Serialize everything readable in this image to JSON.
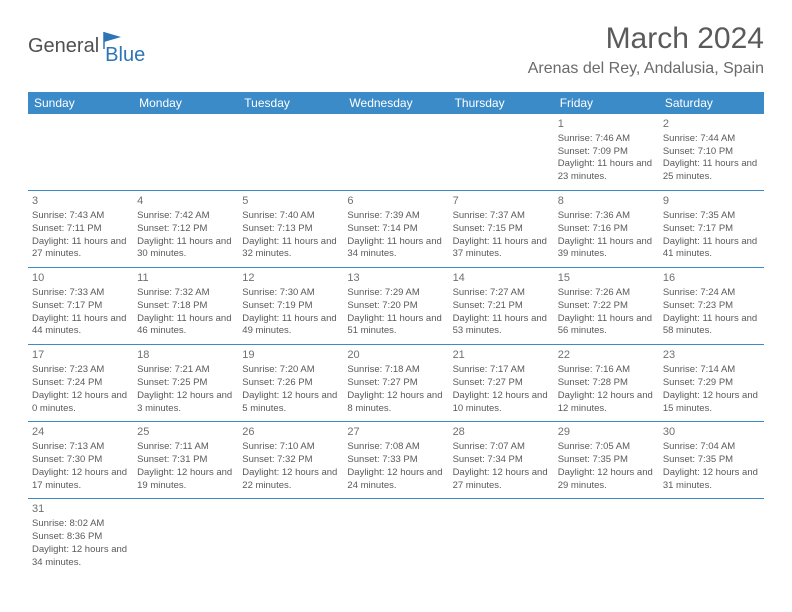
{
  "logo": {
    "general": "General",
    "blue": "Blue"
  },
  "title": "March 2024",
  "location": "Arenas del Rey, Andalusia, Spain",
  "colors": {
    "header_bg": "#3b8bc8",
    "header_text": "#ffffff",
    "text": "#5a5a5a",
    "rule": "#3b8bc8",
    "logo_blue": "#2e75b6"
  },
  "day_headers": [
    "Sunday",
    "Monday",
    "Tuesday",
    "Wednesday",
    "Thursday",
    "Friday",
    "Saturday"
  ],
  "weeks": [
    [
      null,
      null,
      null,
      null,
      null,
      {
        "n": "1",
        "sunrise": "7:46 AM",
        "sunset": "7:09 PM",
        "daylight": "11 hours and 23 minutes."
      },
      {
        "n": "2",
        "sunrise": "7:44 AM",
        "sunset": "7:10 PM",
        "daylight": "11 hours and 25 minutes."
      }
    ],
    [
      {
        "n": "3",
        "sunrise": "7:43 AM",
        "sunset": "7:11 PM",
        "daylight": "11 hours and 27 minutes."
      },
      {
        "n": "4",
        "sunrise": "7:42 AM",
        "sunset": "7:12 PM",
        "daylight": "11 hours and 30 minutes."
      },
      {
        "n": "5",
        "sunrise": "7:40 AM",
        "sunset": "7:13 PM",
        "daylight": "11 hours and 32 minutes."
      },
      {
        "n": "6",
        "sunrise": "7:39 AM",
        "sunset": "7:14 PM",
        "daylight": "11 hours and 34 minutes."
      },
      {
        "n": "7",
        "sunrise": "7:37 AM",
        "sunset": "7:15 PM",
        "daylight": "11 hours and 37 minutes."
      },
      {
        "n": "8",
        "sunrise": "7:36 AM",
        "sunset": "7:16 PM",
        "daylight": "11 hours and 39 minutes."
      },
      {
        "n": "9",
        "sunrise": "7:35 AM",
        "sunset": "7:17 PM",
        "daylight": "11 hours and 41 minutes."
      }
    ],
    [
      {
        "n": "10",
        "sunrise": "7:33 AM",
        "sunset": "7:17 PM",
        "daylight": "11 hours and 44 minutes."
      },
      {
        "n": "11",
        "sunrise": "7:32 AM",
        "sunset": "7:18 PM",
        "daylight": "11 hours and 46 minutes."
      },
      {
        "n": "12",
        "sunrise": "7:30 AM",
        "sunset": "7:19 PM",
        "daylight": "11 hours and 49 minutes."
      },
      {
        "n": "13",
        "sunrise": "7:29 AM",
        "sunset": "7:20 PM",
        "daylight": "11 hours and 51 minutes."
      },
      {
        "n": "14",
        "sunrise": "7:27 AM",
        "sunset": "7:21 PM",
        "daylight": "11 hours and 53 minutes."
      },
      {
        "n": "15",
        "sunrise": "7:26 AM",
        "sunset": "7:22 PM",
        "daylight": "11 hours and 56 minutes."
      },
      {
        "n": "16",
        "sunrise": "7:24 AM",
        "sunset": "7:23 PM",
        "daylight": "11 hours and 58 minutes."
      }
    ],
    [
      {
        "n": "17",
        "sunrise": "7:23 AM",
        "sunset": "7:24 PM",
        "daylight": "12 hours and 0 minutes."
      },
      {
        "n": "18",
        "sunrise": "7:21 AM",
        "sunset": "7:25 PM",
        "daylight": "12 hours and 3 minutes."
      },
      {
        "n": "19",
        "sunrise": "7:20 AM",
        "sunset": "7:26 PM",
        "daylight": "12 hours and 5 minutes."
      },
      {
        "n": "20",
        "sunrise": "7:18 AM",
        "sunset": "7:27 PM",
        "daylight": "12 hours and 8 minutes."
      },
      {
        "n": "21",
        "sunrise": "7:17 AM",
        "sunset": "7:27 PM",
        "daylight": "12 hours and 10 minutes."
      },
      {
        "n": "22",
        "sunrise": "7:16 AM",
        "sunset": "7:28 PM",
        "daylight": "12 hours and 12 minutes."
      },
      {
        "n": "23",
        "sunrise": "7:14 AM",
        "sunset": "7:29 PM",
        "daylight": "12 hours and 15 minutes."
      }
    ],
    [
      {
        "n": "24",
        "sunrise": "7:13 AM",
        "sunset": "7:30 PM",
        "daylight": "12 hours and 17 minutes."
      },
      {
        "n": "25",
        "sunrise": "7:11 AM",
        "sunset": "7:31 PM",
        "daylight": "12 hours and 19 minutes."
      },
      {
        "n": "26",
        "sunrise": "7:10 AM",
        "sunset": "7:32 PM",
        "daylight": "12 hours and 22 minutes."
      },
      {
        "n": "27",
        "sunrise": "7:08 AM",
        "sunset": "7:33 PM",
        "daylight": "12 hours and 24 minutes."
      },
      {
        "n": "28",
        "sunrise": "7:07 AM",
        "sunset": "7:34 PM",
        "daylight": "12 hours and 27 minutes."
      },
      {
        "n": "29",
        "sunrise": "7:05 AM",
        "sunset": "7:35 PM",
        "daylight": "12 hours and 29 minutes."
      },
      {
        "n": "30",
        "sunrise": "7:04 AM",
        "sunset": "7:35 PM",
        "daylight": "12 hours and 31 minutes."
      }
    ],
    [
      {
        "n": "31",
        "sunrise": "8:02 AM",
        "sunset": "8:36 PM",
        "daylight": "12 hours and 34 minutes."
      },
      null,
      null,
      null,
      null,
      null,
      null
    ]
  ]
}
